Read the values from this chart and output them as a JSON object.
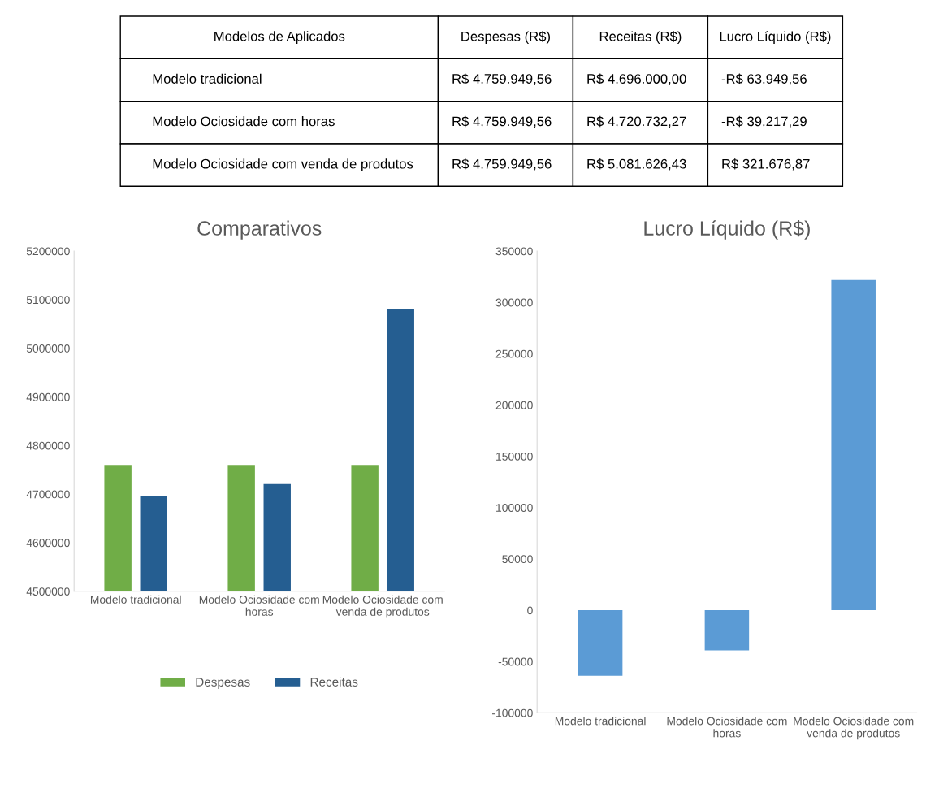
{
  "chart_data": [
    {
      "type": "other",
      "categories": [
        "Modelo tradicional",
        "Modelo Ociosidade com horas",
        "Modelo Ociosidade com venda de produtos"
      ],
      "annotations": [
        "Modelos de Aplicados",
        "Despesas (R$)",
        "Receitas (R$)",
        "Lucro Líquido (R$)",
        "R$ 4.759.949,56",
        "R$ 4.696.000,00",
        "-R$ 63.949,56",
        "R$ 4.759.949,56",
        "R$ 4.720.732,27",
        "-R$ 39.217,29",
        "R$ 4.759.949,56",
        "R$ 5.081.626,43",
        "R$ 321.676,87"
      ]
    },
    {
      "type": "bar",
      "title": "Comparativos",
      "categories": [
        "Modelo tradicional",
        "Modelo Ociosidade com\nhoras",
        "Modelo Ociosidade com\nvenda de produtos"
      ],
      "series": [
        {
          "name": "Despesas",
          "color": "#70ad47",
          "values": [
            4759949.56,
            4759949.56,
            4759949.56
          ]
        },
        {
          "name": "Receitas",
          "color": "#255e91",
          "values": [
            4696000,
            4720732.27,
            5081626.43
          ]
        }
      ],
      "ylim": [
        4500000,
        5200000
      ],
      "yticks": [
        4500000,
        4600000,
        4700000,
        4800000,
        4900000,
        5000000,
        5100000,
        5200000
      ],
      "legend": "bottom",
      "grid": false
    },
    {
      "type": "bar",
      "title": "Lucro Líquido (R$)",
      "categories": [
        "Modelo tradicional",
        "Modelo Ociosidade com\nhoras",
        "Modelo Ociosidade com\nvenda de produtos"
      ],
      "series": [
        {
          "color": "#5b9bd5",
          "values": [
            -63949.56,
            -39217.29,
            321676.87
          ]
        }
      ],
      "ylim": [
        -100000,
        350000
      ],
      "yticks": [
        -100000,
        -50000,
        0,
        50000,
        100000,
        150000,
        200000,
        250000,
        300000,
        350000
      ],
      "grid": false
    }
  ]
}
